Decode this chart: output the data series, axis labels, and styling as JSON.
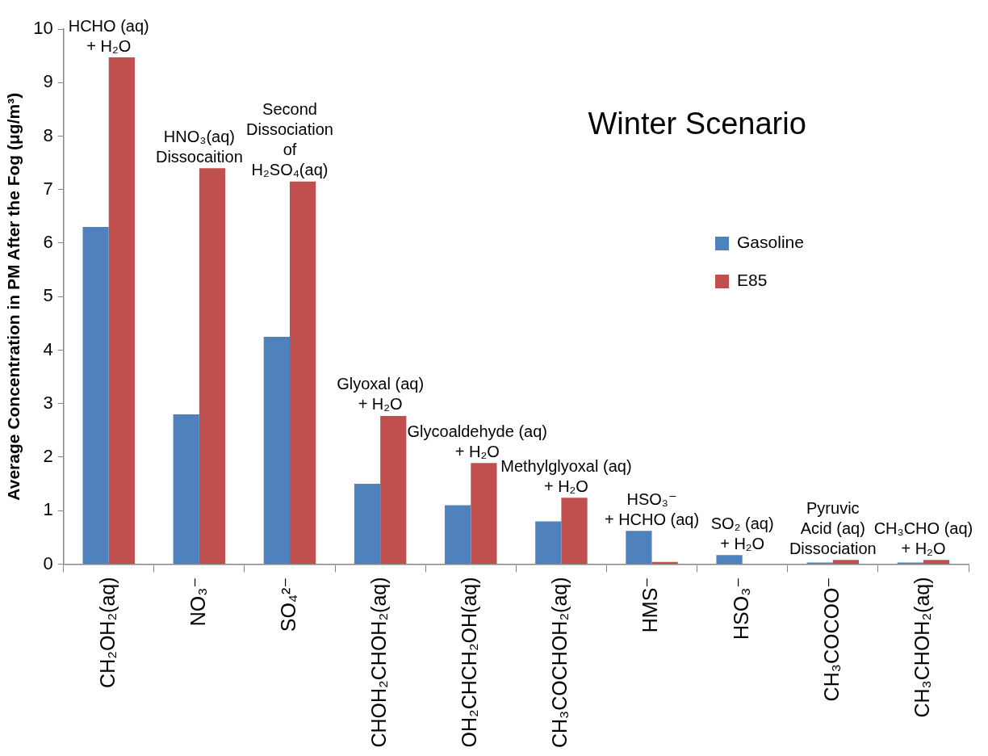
{
  "chart_data": {
    "type": "bar",
    "title": "Winter Scenario",
    "ylabel": "Average Concentration in PM After the Fog (μg/m³)",
    "categories": [
      "CH₂OH₂(aq)",
      "NO₃⁻",
      "SO₄²⁻",
      "CHOH₂CHOH₂(aq)",
      "OH₂CHCH₂OH(aq)",
      "CH₃COCHOH₂(aq)",
      "HMS⁻",
      "HSO₃⁻",
      "CH₃COCOO⁻",
      "CH₃CHOH₂(aq)"
    ],
    "series": [
      {
        "name": "Gasoline",
        "color": "#4f81bd",
        "values": [
          6.3,
          2.8,
          4.25,
          1.5,
          1.1,
          0.8,
          0.62,
          0.17,
          0.03,
          0.03
        ]
      },
      {
        "name": "E85",
        "color": "#c0504d",
        "values": [
          9.47,
          7.4,
          7.15,
          2.77,
          1.89,
          1.24,
          0.04,
          0,
          0.08,
          0.08
        ]
      }
    ],
    "ylim": [
      0,
      10
    ],
    "yticks": [
      0,
      1,
      2,
      3,
      4,
      5,
      6,
      7,
      8,
      9,
      10
    ],
    "grid": false,
    "legend": "right",
    "annotations": [
      "HCHO (aq)\n+ H₂O",
      "HNO₃(aq)\nDissocaition",
      "Second\nDissociation\nof\nH₂SO₄(aq)",
      "Glyoxal (aq)\n+ H₂O",
      "Glycoaldehyde (aq)\n+ H₂O",
      "Methylglyoxal (aq)\n+ H₂O",
      "HSO₃⁻\n+ HCHO (aq)",
      "SO₂ (aq)\n+ H₂O",
      "Pyruvic\nAcid (aq)\nDissociation",
      "CH₃CHO (aq)\n+ H₂O"
    ]
  }
}
